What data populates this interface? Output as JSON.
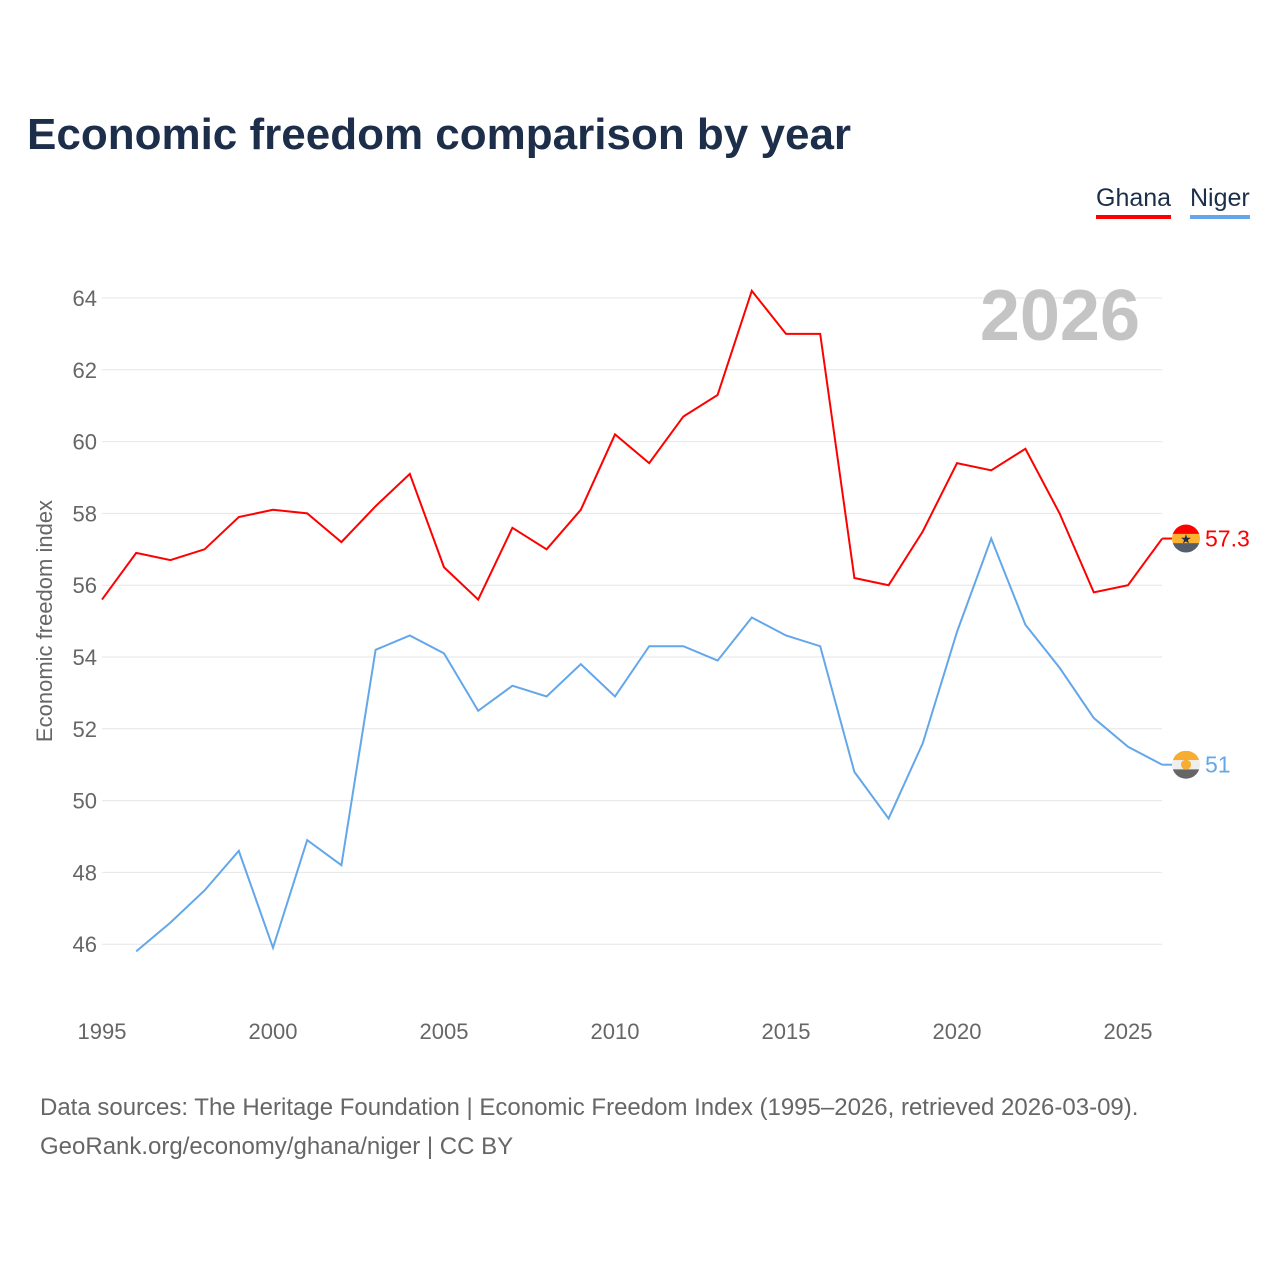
{
  "chart_data": {
    "type": "line",
    "title": "Economic freedom comparison by year",
    "ylabel": "Economic freedom index",
    "xlabel": "",
    "ylim": [
      45,
      65
    ],
    "xlim": [
      1995,
      2026
    ],
    "yticks": [
      46,
      48,
      50,
      52,
      54,
      56,
      58,
      60,
      62,
      64
    ],
    "xticks": [
      1995,
      2000,
      2005,
      2010,
      2015,
      2020,
      2025
    ],
    "watermark_year": "2026",
    "legend_placement": "top-right",
    "grid": true,
    "series": [
      {
        "name": "Ghana",
        "color": "#ff0000",
        "end_label": "57.3",
        "x": [
          1995,
          1996,
          1997,
          1998,
          1999,
          2000,
          2001,
          2002,
          2003,
          2004,
          2005,
          2006,
          2007,
          2008,
          2009,
          2010,
          2011,
          2012,
          2013,
          2014,
          2015,
          2016,
          2017,
          2018,
          2019,
          2020,
          2021,
          2022,
          2023,
          2024,
          2025,
          2026
        ],
        "values": [
          55.6,
          56.9,
          56.7,
          57.0,
          57.9,
          58.1,
          58.0,
          57.2,
          58.2,
          59.1,
          56.5,
          55.6,
          57.6,
          57.0,
          58.1,
          60.2,
          59.4,
          60.7,
          61.3,
          64.2,
          63.0,
          63.0,
          56.2,
          56.0,
          57.5,
          59.4,
          59.2,
          59.8,
          58.0,
          55.8,
          56.0,
          57.3
        ]
      },
      {
        "name": "Niger",
        "color": "#63a7ea",
        "end_label": "51",
        "x": [
          1996,
          1997,
          1998,
          1999,
          2000,
          2001,
          2002,
          2003,
          2004,
          2005,
          2006,
          2007,
          2008,
          2009,
          2010,
          2011,
          2012,
          2013,
          2014,
          2015,
          2016,
          2017,
          2018,
          2019,
          2020,
          2021,
          2022,
          2023,
          2024,
          2025,
          2026
        ],
        "values": [
          45.8,
          46.6,
          47.5,
          48.6,
          45.9,
          48.9,
          48.2,
          54.2,
          54.6,
          54.1,
          52.5,
          53.2,
          52.9,
          53.8,
          52.9,
          54.3,
          54.3,
          53.9,
          55.1,
          54.6,
          54.3,
          50.8,
          49.5,
          51.6,
          54.7,
          57.3,
          54.9,
          53.7,
          52.3,
          51.5,
          51.0
        ]
      }
    ]
  },
  "source": {
    "line1": "Data sources: The Heritage Foundation | Economic Freedom Index (1995–2026, retrieved 2026-03-09).",
    "line2": "GeoRank.org/economy/ghana/niger | CC BY"
  }
}
